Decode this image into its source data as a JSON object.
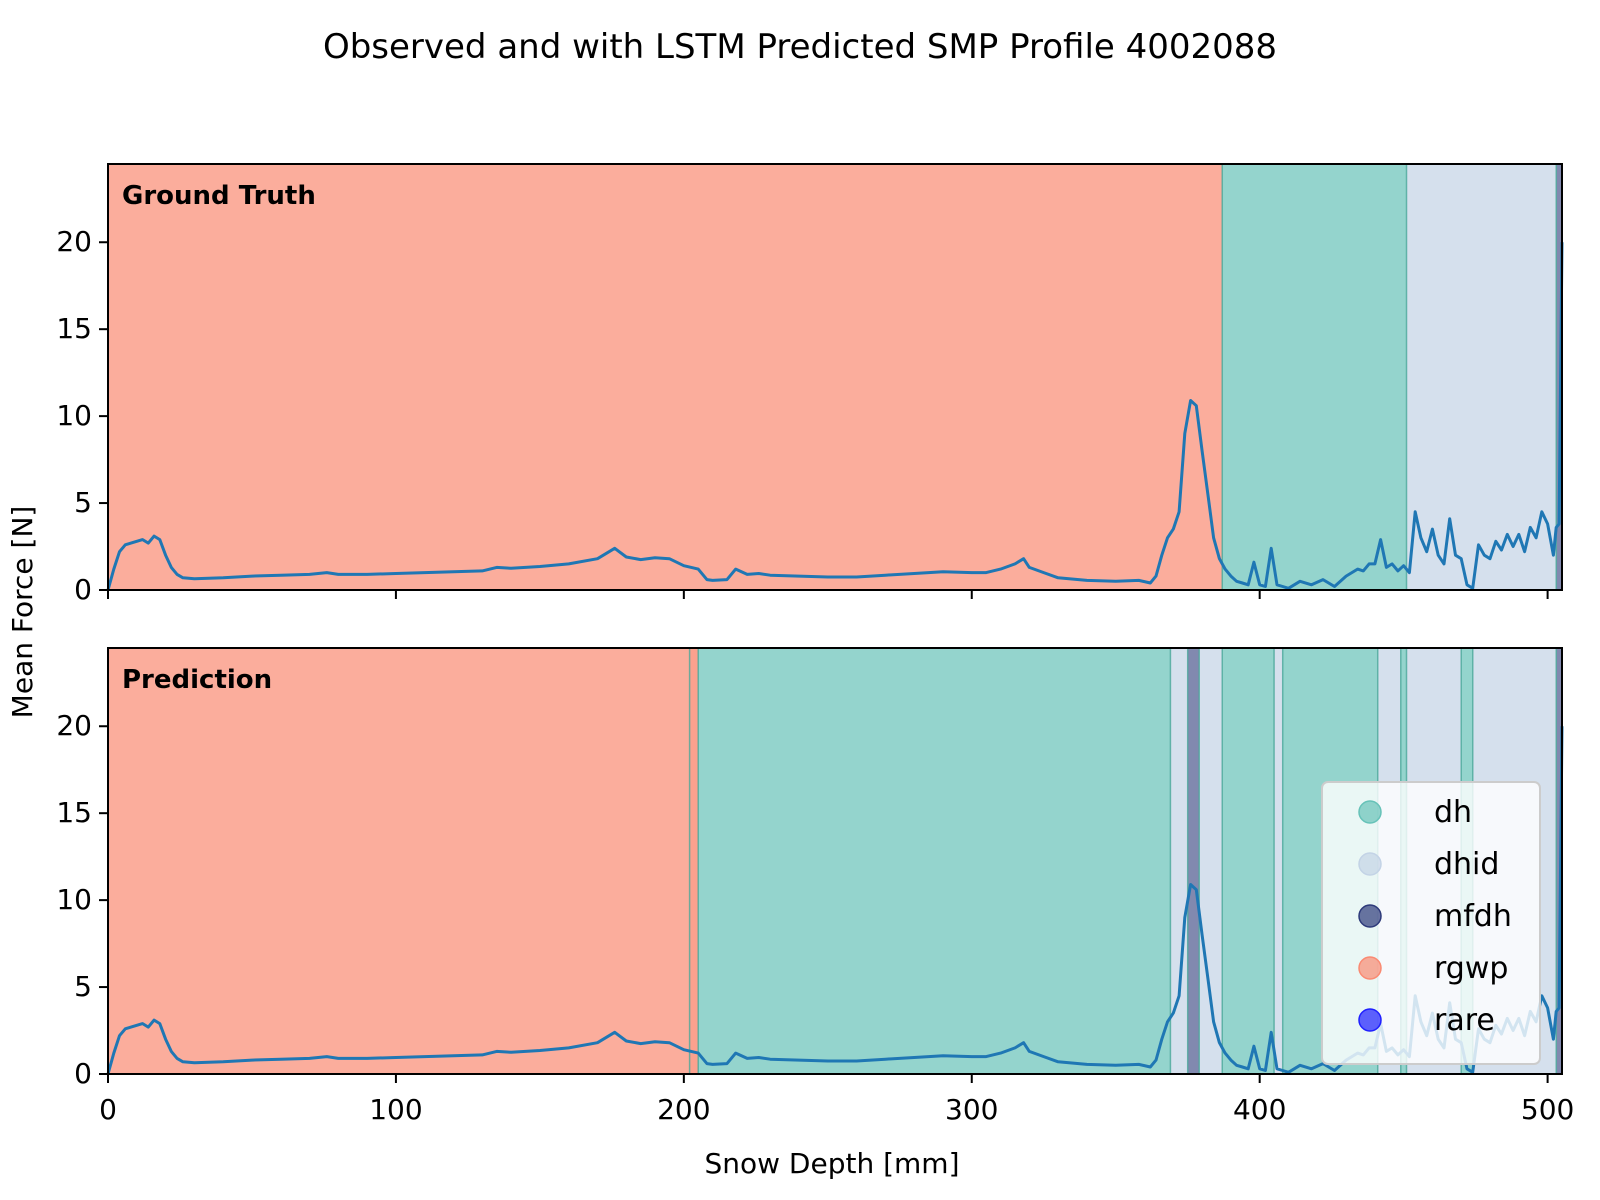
{
  "title": "Observed and with LSTM Predicted SMP Profile 4002088",
  "colors": {
    "dh": "#66c2b8",
    "dhid": "#c3d3e6",
    "mfdh": "#2d3a7a",
    "rgwp": "#fa8a72",
    "rare": "#1f1fff",
    "line": "#1f77b4"
  },
  "chart_data": {
    "type": "line",
    "xlabel": "Snow Depth [mm]",
    "ylabel": "Mean Force [N]",
    "xlim": [
      0,
      505
    ],
    "ylim": [
      0,
      24.5
    ],
    "xticks": [
      0,
      100,
      200,
      300,
      400,
      500
    ],
    "yticks": [
      0,
      5,
      10,
      15,
      20
    ],
    "series": [
      {
        "x": [
          0,
          2,
          4,
          6,
          8,
          10,
          12,
          14,
          16,
          18,
          20,
          22,
          24,
          26,
          30,
          40,
          50,
          60,
          70,
          76,
          80,
          90,
          100,
          110,
          120,
          130,
          135,
          140,
          150,
          160,
          170,
          176,
          180,
          185,
          190,
          195,
          200,
          205,
          208,
          210,
          215,
          218,
          222,
          226,
          230,
          240,
          250,
          260,
          270,
          280,
          290,
          300,
          305,
          310,
          315,
          318,
          320,
          325,
          330,
          340,
          350,
          358,
          362,
          364,
          366,
          368,
          370,
          372,
          374,
          376,
          378,
          380,
          382,
          384,
          386,
          388,
          390,
          392,
          394,
          396,
          398,
          400,
          402,
          404,
          406,
          408,
          410,
          414,
          418,
          422,
          426,
          430,
          434,
          436,
          438,
          440,
          442,
          444,
          446,
          448,
          450,
          452,
          454,
          456,
          458,
          460,
          462,
          464,
          466,
          468,
          470,
          472,
          474,
          476,
          478,
          480,
          482,
          484,
          486,
          488,
          490,
          492,
          494,
          496,
          498,
          500,
          502,
          503,
          504,
          505
        ],
        "y": [
          0.0,
          1.2,
          2.2,
          2.6,
          2.7,
          2.8,
          2.9,
          2.7,
          3.1,
          2.9,
          2.0,
          1.3,
          0.9,
          0.7,
          0.65,
          0.7,
          0.8,
          0.85,
          0.9,
          1.0,
          0.9,
          0.9,
          0.95,
          1.0,
          1.05,
          1.1,
          1.3,
          1.25,
          1.35,
          1.5,
          1.8,
          2.4,
          1.9,
          1.75,
          1.85,
          1.8,
          1.4,
          1.2,
          0.6,
          0.55,
          0.6,
          1.2,
          0.9,
          0.95,
          0.85,
          0.8,
          0.75,
          0.75,
          0.85,
          0.95,
          1.05,
          1.0,
          1.0,
          1.2,
          1.5,
          1.8,
          1.3,
          1.0,
          0.7,
          0.55,
          0.5,
          0.55,
          0.4,
          0.8,
          2.0,
          3.0,
          3.5,
          4.5,
          9.0,
          10.9,
          10.6,
          8.0,
          5.5,
          3.0,
          1.8,
          1.2,
          0.8,
          0.5,
          0.4,
          0.3,
          1.6,
          0.3,
          0.2,
          2.4,
          0.3,
          0.2,
          0.1,
          0.5,
          0.3,
          0.6,
          0.2,
          0.8,
          1.2,
          1.1,
          1.5,
          1.5,
          2.9,
          1.3,
          1.5,
          1.1,
          1.4,
          1.0,
          4.5,
          3.0,
          2.2,
          3.5,
          2.0,
          1.5,
          4.1,
          2.0,
          1.8,
          0.3,
          0.1,
          2.6,
          2.0,
          1.8,
          2.8,
          2.3,
          3.2,
          2.5,
          3.2,
          2.2,
          3.6,
          3.0,
          4.5,
          3.8,
          2.0,
          3.6,
          3.8,
          20.0
        ],
        "color": "#1f77b4"
      }
    ],
    "panels": [
      {
        "label": "Ground Truth",
        "regions": [
          {
            "start": 0,
            "end": 387,
            "class": "rgwp"
          },
          {
            "start": 387,
            "end": 451,
            "class": "dh"
          },
          {
            "start": 451,
            "end": 503,
            "class": "dhid"
          },
          {
            "start": 503,
            "end": 505,
            "class": "mfdh"
          }
        ]
      },
      {
        "label": "Prediction",
        "regions": [
          {
            "start": 0,
            "end": 202,
            "class": "rgwp"
          },
          {
            "start": 202,
            "end": 205,
            "class": "rgwp_edge"
          },
          {
            "start": 205,
            "end": 369,
            "class": "dh"
          },
          {
            "start": 369,
            "end": 375,
            "class": "dhid"
          },
          {
            "start": 375,
            "end": 379,
            "class": "mfdh"
          },
          {
            "start": 379,
            "end": 387,
            "class": "dhid"
          },
          {
            "start": 387,
            "end": 405,
            "class": "dh"
          },
          {
            "start": 405,
            "end": 408,
            "class": "dhid"
          },
          {
            "start": 408,
            "end": 441,
            "class": "dh"
          },
          {
            "start": 441,
            "end": 449,
            "class": "dhid"
          },
          {
            "start": 449,
            "end": 451,
            "class": "dh"
          },
          {
            "start": 451,
            "end": 470,
            "class": "dhid"
          },
          {
            "start": 470,
            "end": 474,
            "class": "dh"
          },
          {
            "start": 474,
            "end": 503,
            "class": "dhid"
          },
          {
            "start": 503,
            "end": 505,
            "class": "mfdh"
          }
        ]
      }
    ],
    "legend": {
      "placement": "lower-right",
      "entries": [
        {
          "name": "dh",
          "color": "#66c2b8"
        },
        {
          "name": "dhid",
          "color": "#c3d3e6"
        },
        {
          "name": "mfdh",
          "color": "#2d3a7a"
        },
        {
          "name": "rgwp",
          "color": "#fa8a72"
        },
        {
          "name": "rare",
          "color": "#1f1fff"
        }
      ]
    },
    "grid": false
  }
}
